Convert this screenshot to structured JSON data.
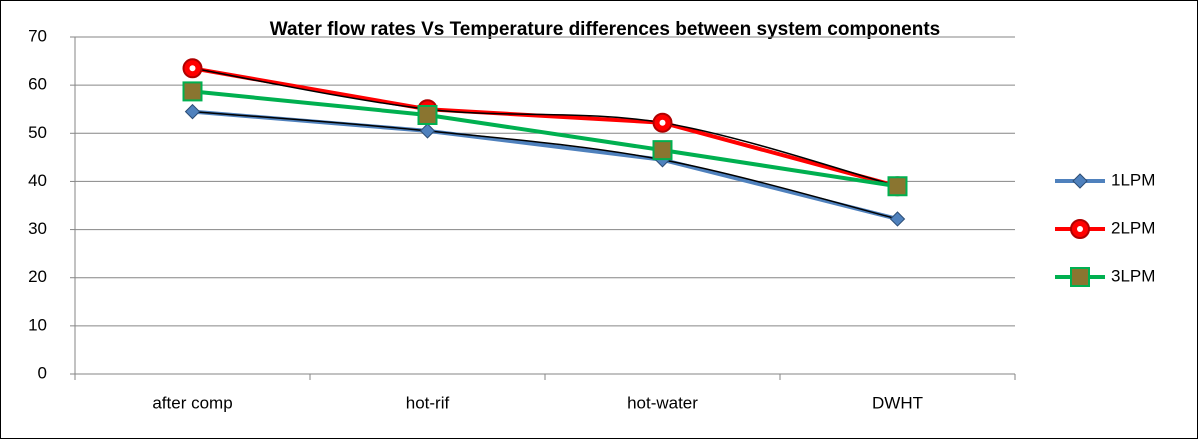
{
  "chart_data": {
    "type": "line",
    "title": "Water flow rates Vs Temperature differences between system components",
    "categories": [
      "after comp",
      "hot-rif",
      "hot-water",
      "DWHT"
    ],
    "series": [
      {
        "name": "1LPM",
        "color": "#4f81bd",
        "marker": "diamond",
        "trendline": true,
        "values": [
          54.5,
          50.5,
          44.5,
          32.2
        ]
      },
      {
        "name": "2LPM",
        "color": "#ff0000",
        "marker": "circle",
        "trendline": true,
        "values": [
          63.5,
          55,
          52.2,
          39
        ]
      },
      {
        "name": "3LPM",
        "color": "#00b050",
        "marker": "square",
        "values": [
          58.7,
          53.8,
          46.5,
          39
        ]
      }
    ],
    "ylim": [
      0,
      70
    ],
    "yticks": [
      0,
      10,
      20,
      30,
      40,
      50,
      60,
      70
    ],
    "grid": true,
    "legend": "right"
  }
}
